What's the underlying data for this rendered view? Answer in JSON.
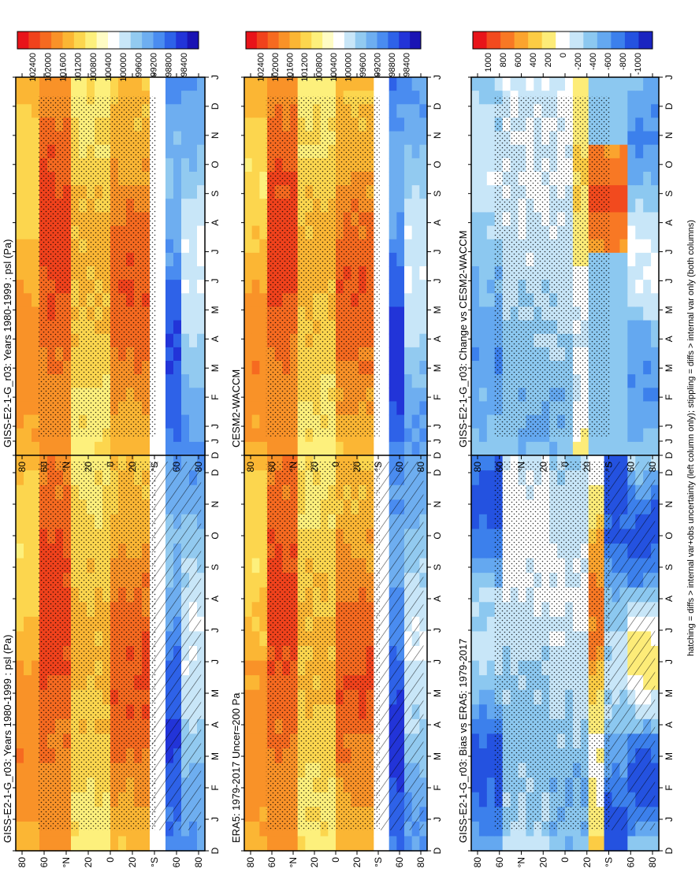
{
  "chart_data": [
    {
      "id": "left-top",
      "type": "heatmap",
      "title": "GISS-E2-1-G_r03: Years 1980-1999 : psl (Pa)",
      "x_ticks": [
        "D",
        "J",
        "F",
        "M",
        "A",
        "M",
        "J",
        "J",
        "A",
        "S",
        "O",
        "N",
        "D",
        "J"
      ],
      "y_ticks": [
        "80",
        "60",
        "°N",
        "20",
        "0",
        "20",
        "°S",
        "60",
        "80"
      ],
      "colorbar_labels": [
        "102400",
        "102000",
        "101600",
        "101200",
        "100800",
        "100400",
        "100000",
        "99600",
        "99200",
        "98800",
        "98400"
      ],
      "palette": "abs",
      "hatch": true,
      "stipple": true,
      "x_unit": "month",
      "y_unit": "latitude"
    },
    {
      "id": "left-middle",
      "type": "heatmap",
      "title": "ERA5: 1979-2017 Uncer=200 Pa",
      "x_ticks": [
        "D",
        "J",
        "F",
        "M",
        "A",
        "M",
        "J",
        "J",
        "A",
        "S",
        "O",
        "N",
        "D",
        "J"
      ],
      "y_ticks": [
        "80",
        "60",
        "°N",
        "20",
        "0",
        "20",
        "°S",
        "60",
        "80"
      ],
      "colorbar_labels": [
        "102400",
        "102000",
        "101600",
        "101200",
        "100800",
        "100400",
        "100000",
        "99600",
        "99200",
        "98800",
        "98400"
      ],
      "palette": "abs",
      "hatch": true,
      "stipple": true
    },
    {
      "id": "left-bottom",
      "type": "heatmap",
      "title": "GISS-E2-1-G_r03: Bias vs ERA5: 1979-2017",
      "x_ticks": [
        "D",
        "J",
        "F",
        "M",
        "A",
        "M",
        "J",
        "J",
        "A",
        "S",
        "O",
        "N",
        "D",
        "J"
      ],
      "y_ticks": [
        "80",
        "60",
        "°N",
        "20",
        "0",
        "20",
        "°S",
        "60",
        "80"
      ],
      "colorbar_labels": [
        "1000",
        "800",
        "600",
        "400",
        "200",
        "0",
        "-200",
        "-400",
        "-600",
        "-800",
        "-1000"
      ],
      "palette": "diff",
      "hatch": true,
      "stipple": true
    },
    {
      "id": "right-top",
      "type": "heatmap",
      "title": "GISS-E2-1-G_r03: Years 1980-1999 : psl (Pa)",
      "x_ticks": [
        "D",
        "J",
        "F",
        "M",
        "A",
        "M",
        "J",
        "J",
        "A",
        "S",
        "O",
        "N",
        "D",
        "J"
      ],
      "y_ticks": [
        "80",
        "60",
        "°N",
        "20",
        "0",
        "20",
        "°S",
        "60",
        "80"
      ],
      "colorbar_labels": [
        "102400",
        "102000",
        "101600",
        "101200",
        "100800",
        "100400",
        "100000",
        "99600",
        "99200",
        "98800",
        "98400"
      ],
      "palette": "abs",
      "hatch": false,
      "stipple": true
    },
    {
      "id": "right-middle",
      "type": "heatmap",
      "title": "CESM2-WACCM",
      "x_ticks": [
        "D",
        "J",
        "F",
        "M",
        "A",
        "M",
        "J",
        "J",
        "A",
        "S",
        "O",
        "N",
        "D",
        "J"
      ],
      "y_ticks": [
        "80",
        "60",
        "°N",
        "20",
        "0",
        "20",
        "°S",
        "60",
        "80"
      ],
      "colorbar_labels": [
        "102400",
        "102000",
        "101600",
        "101200",
        "100800",
        "100400",
        "100000",
        "99600",
        "99200",
        "98800",
        "98400"
      ],
      "palette": "abs",
      "hatch": false,
      "stipple": true
    },
    {
      "id": "right-bottom",
      "type": "heatmap",
      "title": "GISS-E2-1-G_r03: Change vs CESM2-WACCM",
      "x_ticks": [
        "D",
        "J",
        "F",
        "M",
        "A",
        "M",
        "J",
        "J",
        "A",
        "S",
        "O",
        "N",
        "D",
        "J"
      ],
      "y_ticks": [
        "80",
        "60",
        "°N",
        "20",
        "0",
        "20",
        "°S",
        "60",
        "80"
      ],
      "colorbar_labels": [
        "1000",
        "800",
        "600",
        "400",
        "200",
        "0",
        "-200",
        "-400",
        "-600",
        "-800",
        "-1000"
      ],
      "palette": "diff",
      "hatch": false,
      "stipple": true
    }
  ],
  "footnote": "hatching = diffs > internal var+obs uncertainty (left column only); stippling = diffs > internal var only (both columns)",
  "colors": {
    "abs": [
      "#e8141a",
      "#f0421c",
      "#f66a20",
      "#f99228",
      "#fbb634",
      "#fcd64e",
      "#fdf07c",
      "#fffcc4",
      "#ffffff",
      "#c8e6f8",
      "#92caf0",
      "#6eaef0",
      "#4a8cf0",
      "#2e62e8",
      "#2234d8",
      "#1a14b4"
    ],
    "diff": [
      "#e8141a",
      "#f24a1e",
      "#f87824",
      "#fba42e",
      "#fccc44",
      "#fdec78",
      "#ffffff",
      "#c8e6f8",
      "#8cc8f0",
      "#64a8f0",
      "#3c80ec",
      "#2452e0",
      "#1a24c0"
    ]
  }
}
